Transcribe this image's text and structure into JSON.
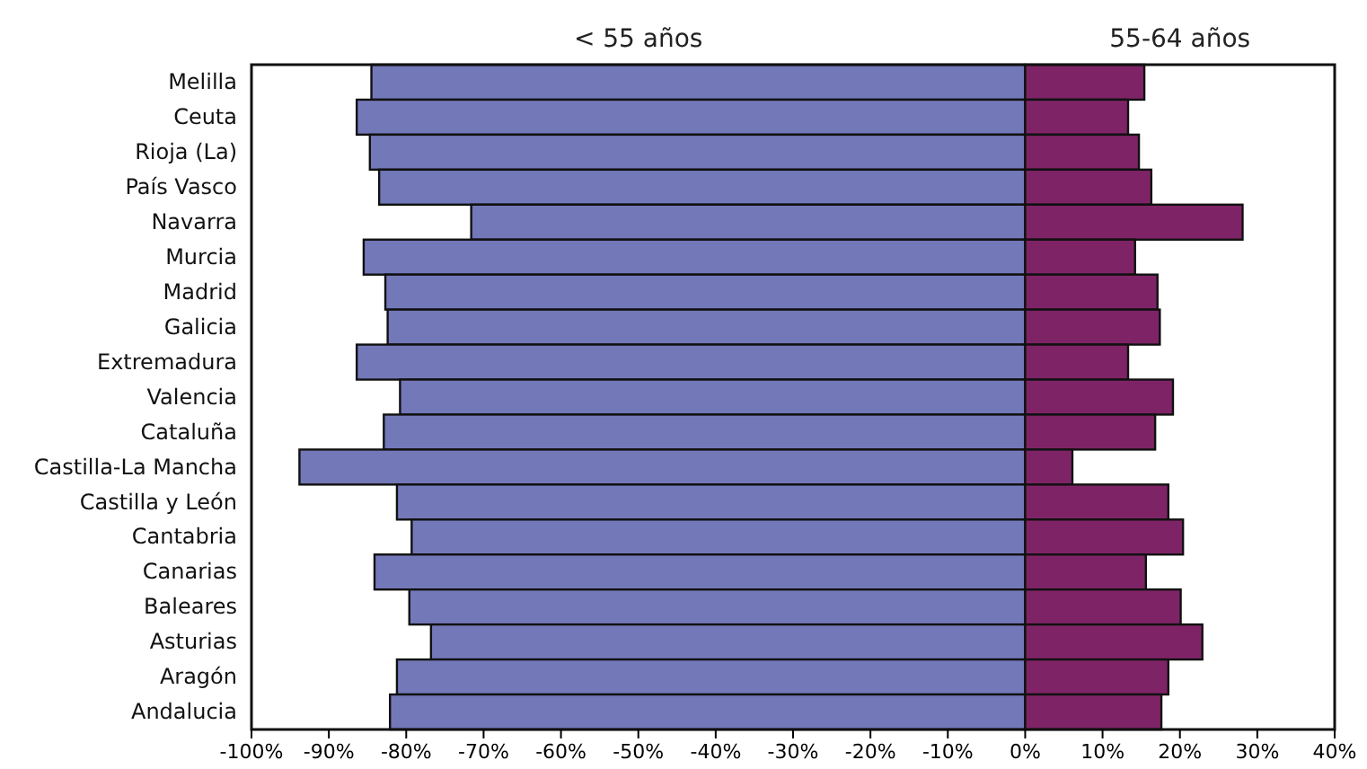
{
  "chart_data": {
    "type": "bar",
    "orientation": "horizontal",
    "categories": [
      "Melilla",
      "Ceuta",
      "Rioja (La)",
      "País Vasco",
      "Navarra",
      "Murcia",
      "Madrid",
      "Galicia",
      "Extremadura",
      "Valencia",
      "Cataluña",
      "Castilla-La Mancha",
      "Castilla y León",
      "Cantabria",
      "Canarias",
      "Baleares",
      "Asturias",
      "Aragón",
      "Andalucia"
    ],
    "series": [
      {
        "name": "< 55 años",
        "color": "#7378b9",
        "values": [
          -84.5,
          -86.4,
          -84.7,
          -83.5,
          -71.6,
          -85.5,
          -82.7,
          -82.4,
          -86.4,
          -80.8,
          -82.9,
          -93.8,
          -81.2,
          -79.3,
          -84.1,
          -79.6,
          -76.8,
          -81.2,
          -82.1
        ]
      },
      {
        "name": "55-64 años",
        "color": "#7e2466",
        "values": [
          15.4,
          13.3,
          14.7,
          16.3,
          28.1,
          14.2,
          17.1,
          17.4,
          13.3,
          19.1,
          16.8,
          6.1,
          18.5,
          20.4,
          15.6,
          20.1,
          22.9,
          18.5,
          17.6
        ]
      }
    ],
    "xlim": [
      -100,
      40
    ],
    "xticks": [
      {
        "value": -100,
        "label": "-100%"
      },
      {
        "value": -90,
        "label": "-90%"
      },
      {
        "value": -80,
        "label": "-80%"
      },
      {
        "value": -70,
        "label": "-70%"
      },
      {
        "value": -60,
        "label": "-60%"
      },
      {
        "value": -50,
        "label": "-50%"
      },
      {
        "value": -40,
        "label": "-40%"
      },
      {
        "value": -30,
        "label": "-30%"
      },
      {
        "value": -20,
        "label": "-20%"
      },
      {
        "value": -10,
        "label": "-10%"
      },
      {
        "value": 0,
        "label": "0%"
      },
      {
        "value": 10,
        "label": "10%"
      },
      {
        "value": 20,
        "label": "20%"
      },
      {
        "value": 30,
        "label": "30%"
      },
      {
        "value": 40,
        "label": "40%"
      }
    ],
    "stacked": true,
    "grid": false,
    "legend": false
  }
}
